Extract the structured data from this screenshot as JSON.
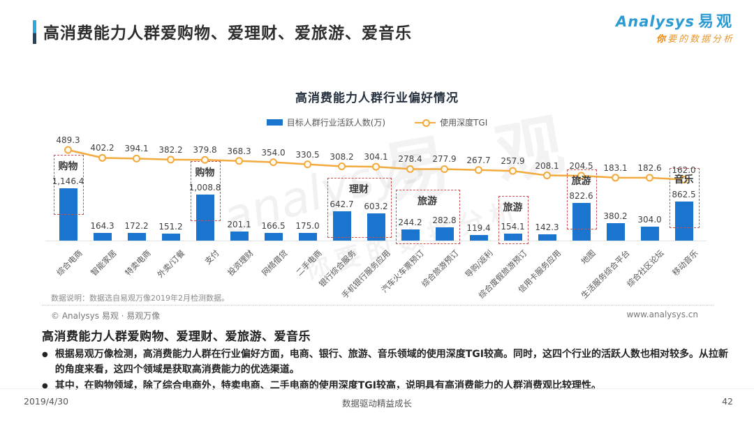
{
  "header": {
    "title": "高消费能力人群爱购物、爱理财、爱旅游、爱音乐",
    "logo": {
      "brand": "Analysys",
      "brand_cn": "易观",
      "tagline_prefix": "你",
      "tagline_rest": "要的数据分析"
    }
  },
  "chart_data": {
    "type": "bar",
    "subtype": "bar+line combo",
    "title": "高消费能力人群行业偏好情况",
    "legend": [
      {
        "label": "目标人群行业活跃人数(万)",
        "marker": "bar",
        "color": "#1B74CE"
      },
      {
        "label": "使用深度TGI",
        "marker": "line",
        "color": "#F3A93C"
      }
    ],
    "legend_position": "top-center",
    "grid": false,
    "categories": [
      "综合电商",
      "智能家居",
      "特卖电商",
      "外卖/订餐",
      "支付",
      "投资理财",
      "网络借贷",
      "二手电商",
      "银行综合服务",
      "手机银行服务应用",
      "汽车火车票预订",
      "综合旅游预订",
      "导购/返利",
      "综合度假旅游预订",
      "信用卡服务应用",
      "地图",
      "生活服务综合平台",
      "综合社区论坛",
      "移动音乐"
    ],
    "series": [
      {
        "name": "目标人群行业活跃人数(万)",
        "type": "bar",
        "values": [
          1146.4,
          164.3,
          172.2,
          151.2,
          1008.8,
          201.1,
          166.5,
          175.0,
          642.7,
          603.2,
          244.2,
          282.8,
          119.4,
          154.1,
          142.3,
          822.6,
          380.2,
          304.0,
          862.5
        ]
      },
      {
        "name": "使用深度TGI",
        "type": "line",
        "values": [
          489.3,
          402.2,
          394.1,
          382.2,
          379.8,
          368.3,
          354.0,
          330.5,
          308.2,
          304.1,
          278.4,
          277.9,
          267.7,
          257.9,
          208.1,
          204.5,
          183.1,
          182.6,
          162.0
        ]
      }
    ],
    "group_boxes": [
      {
        "label": "购物",
        "start": 0,
        "end": 0
      },
      {
        "label": "购物",
        "start": 4,
        "end": 4
      },
      {
        "label": "理财",
        "start": 8,
        "end": 9
      },
      {
        "label": "旅游",
        "start": 10,
        "end": 11
      },
      {
        "label": "旅游",
        "start": 13,
        "end": 13
      },
      {
        "label": "旅游",
        "start": 15,
        "end": 15
      },
      {
        "label": "音乐",
        "start": 18,
        "end": 18
      }
    ],
    "colors": {
      "bar": "#1b74ce",
      "line": "#f3a93c",
      "group_box": "#c9504c"
    }
  },
  "notes": {
    "data_note": "数据说明：数据选自易观万像2019年2月检测数据。",
    "copyright": "© Analysys 易观 · 易观万像",
    "website": "www.analysys.cn"
  },
  "summary": {
    "heading": "高消费能力人群爱购物、爱理财、爱旅游、爱音乐",
    "bullets": [
      "根据易观万像检测，高消费能力人群在行业偏好方面，电商、银行、旅游、音乐领域的使用深度TGI较高。同时，这四个行业的活跃人数也相对较多。从拉新的角度来看，这四个领域是获取高消费能力的优选渠道。",
      "其中，在购物领域，除了综合电商外，特卖电商、二手电商的使用深度TGI较高，说明具有高消费能力的人群消费观比较理性。"
    ]
  },
  "watermark": {
    "line1": "analysys",
    "line2": "易 观",
    "line3": "你要的数据分析"
  },
  "footer": {
    "date": "2019/4/30",
    "slogan": "数据驱动精益成长",
    "page": "42"
  }
}
